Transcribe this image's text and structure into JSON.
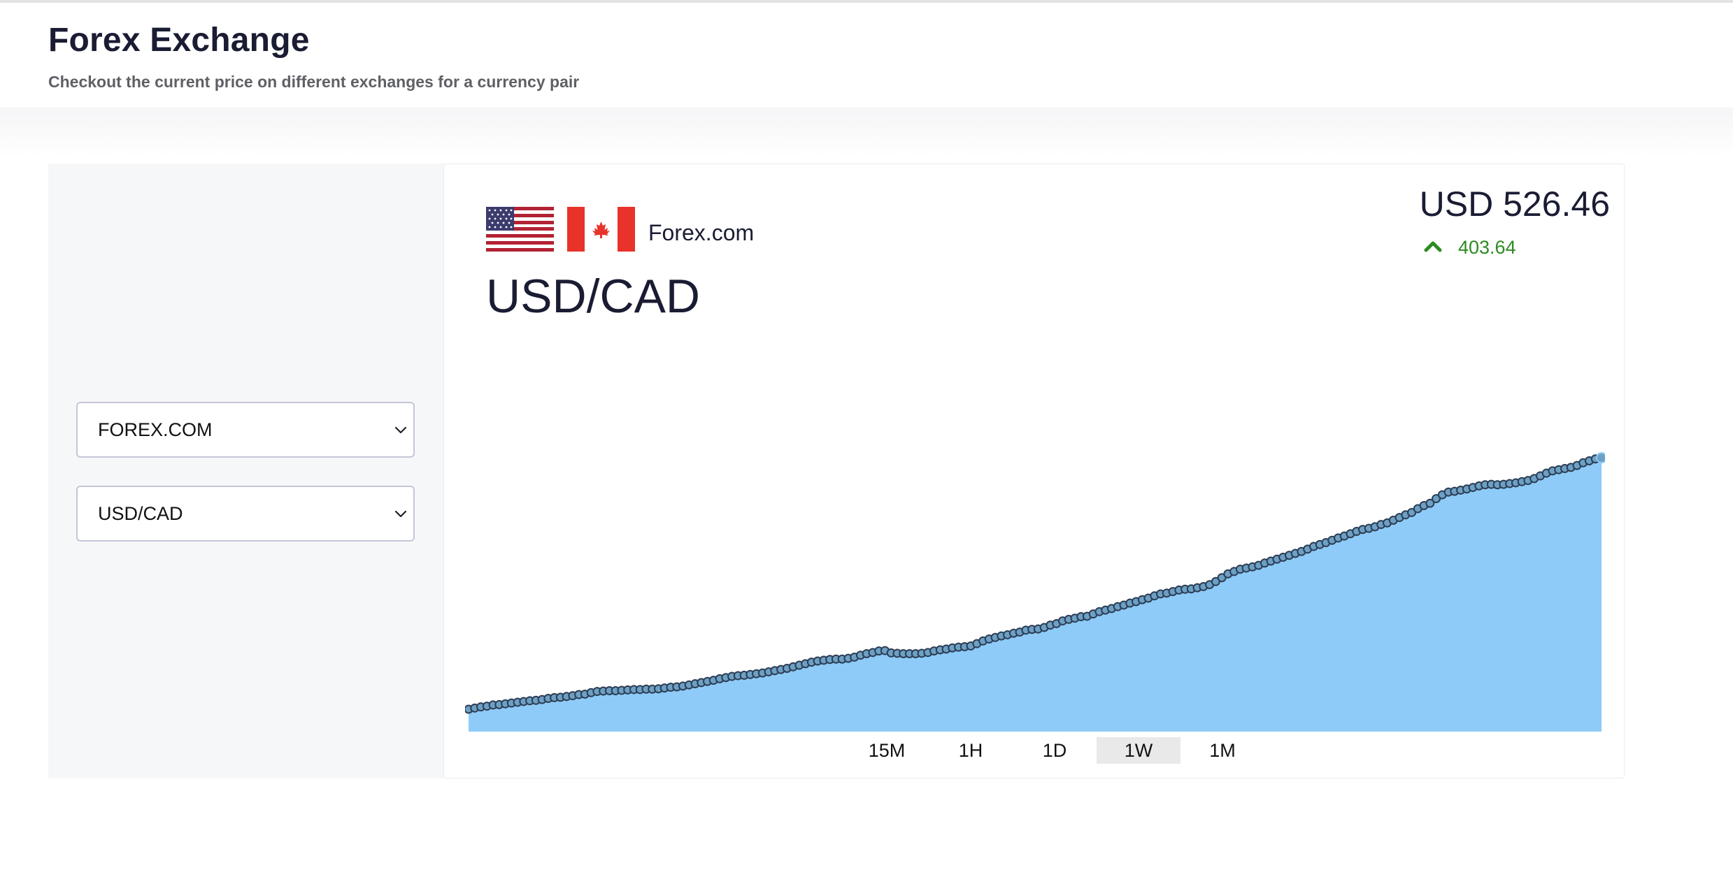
{
  "header": {
    "title": "Forex Exchange",
    "subtitle": "Checkout the current price on different exchanges for a currency pair"
  },
  "filters": {
    "exchange_value": "FOREX.COM",
    "pair_value": "USD/CAD"
  },
  "card": {
    "exchange_name": "Forex.com",
    "pair": "USD/CAD",
    "price": "USD 526.46",
    "change": "403.64",
    "change_direction": "up",
    "base_flag": "us-flag-icon",
    "quote_flag": "canada-flag-icon"
  },
  "colors": {
    "accent_text": "#1a1c33",
    "positive": "#2d8a22",
    "area_fill": "#8ecbf8",
    "point_fill": "#6da0c4",
    "point_stroke": "#2c3e55"
  },
  "time_ranges": {
    "items": [
      "15M",
      "1H",
      "1D",
      "1W",
      "1M"
    ],
    "selected": "1W"
  },
  "chart_data": {
    "type": "area",
    "title": "",
    "xlabel": "",
    "ylabel": "",
    "grid": false,
    "legend": "none",
    "ylim": [
      0,
      1000
    ],
    "series": [
      {
        "values": [
          58,
          61,
          64,
          66,
          69,
          70,
          72,
          74,
          76,
          78,
          80,
          81,
          83,
          86,
          88,
          89,
          91,
          93,
          96,
          97,
          101,
          104,
          105,
          106,
          106,
          107,
          108,
          109,
          109,
          110,
          110,
          111,
          113,
          115,
          116,
          118,
          121,
          124,
          127,
          130,
          133,
          137,
          140,
          143,
          145,
          146,
          148,
          150,
          152,
          155,
          158,
          161,
          164,
          168,
          172,
          176,
          180,
          183,
          185,
          187,
          188,
          188,
          190,
          193,
          198,
          202,
          205,
          209,
          210,
          204,
          203,
          202,
          202,
          202,
          203,
          205,
          209,
          212,
          214,
          217,
          219,
          220,
          222,
          228,
          235,
          240,
          244,
          248,
          251,
          255,
          258,
          263,
          265,
          266,
          270,
          276,
          280,
          287,
          291,
          294,
          298,
          299,
          305,
          311,
          315,
          319,
          324,
          328,
          333,
          337,
          342,
          346,
          352,
          357,
          359,
          363,
          367,
          369,
          370,
          373,
          376,
          381,
          389,
          399,
          409,
          415,
          421,
          424,
          427,
          431,
          437,
          442,
          447,
          452,
          457,
          462,
          467,
          473,
          480,
          485,
          490,
          496,
          502,
          507,
          513,
          519,
          524,
          527,
          531,
          537,
          541,
          548,
          555,
          562,
          568,
          578,
          586,
          592,
          604,
          614,
          621,
          623,
          626,
          629,
          633,
          637,
          640,
          641,
          640,
          641,
          643,
          645,
          648,
          651,
          656,
          663,
          670,
          676,
          679,
          682,
          685,
          690,
          697,
          702,
          707,
          710
        ]
      }
    ]
  }
}
